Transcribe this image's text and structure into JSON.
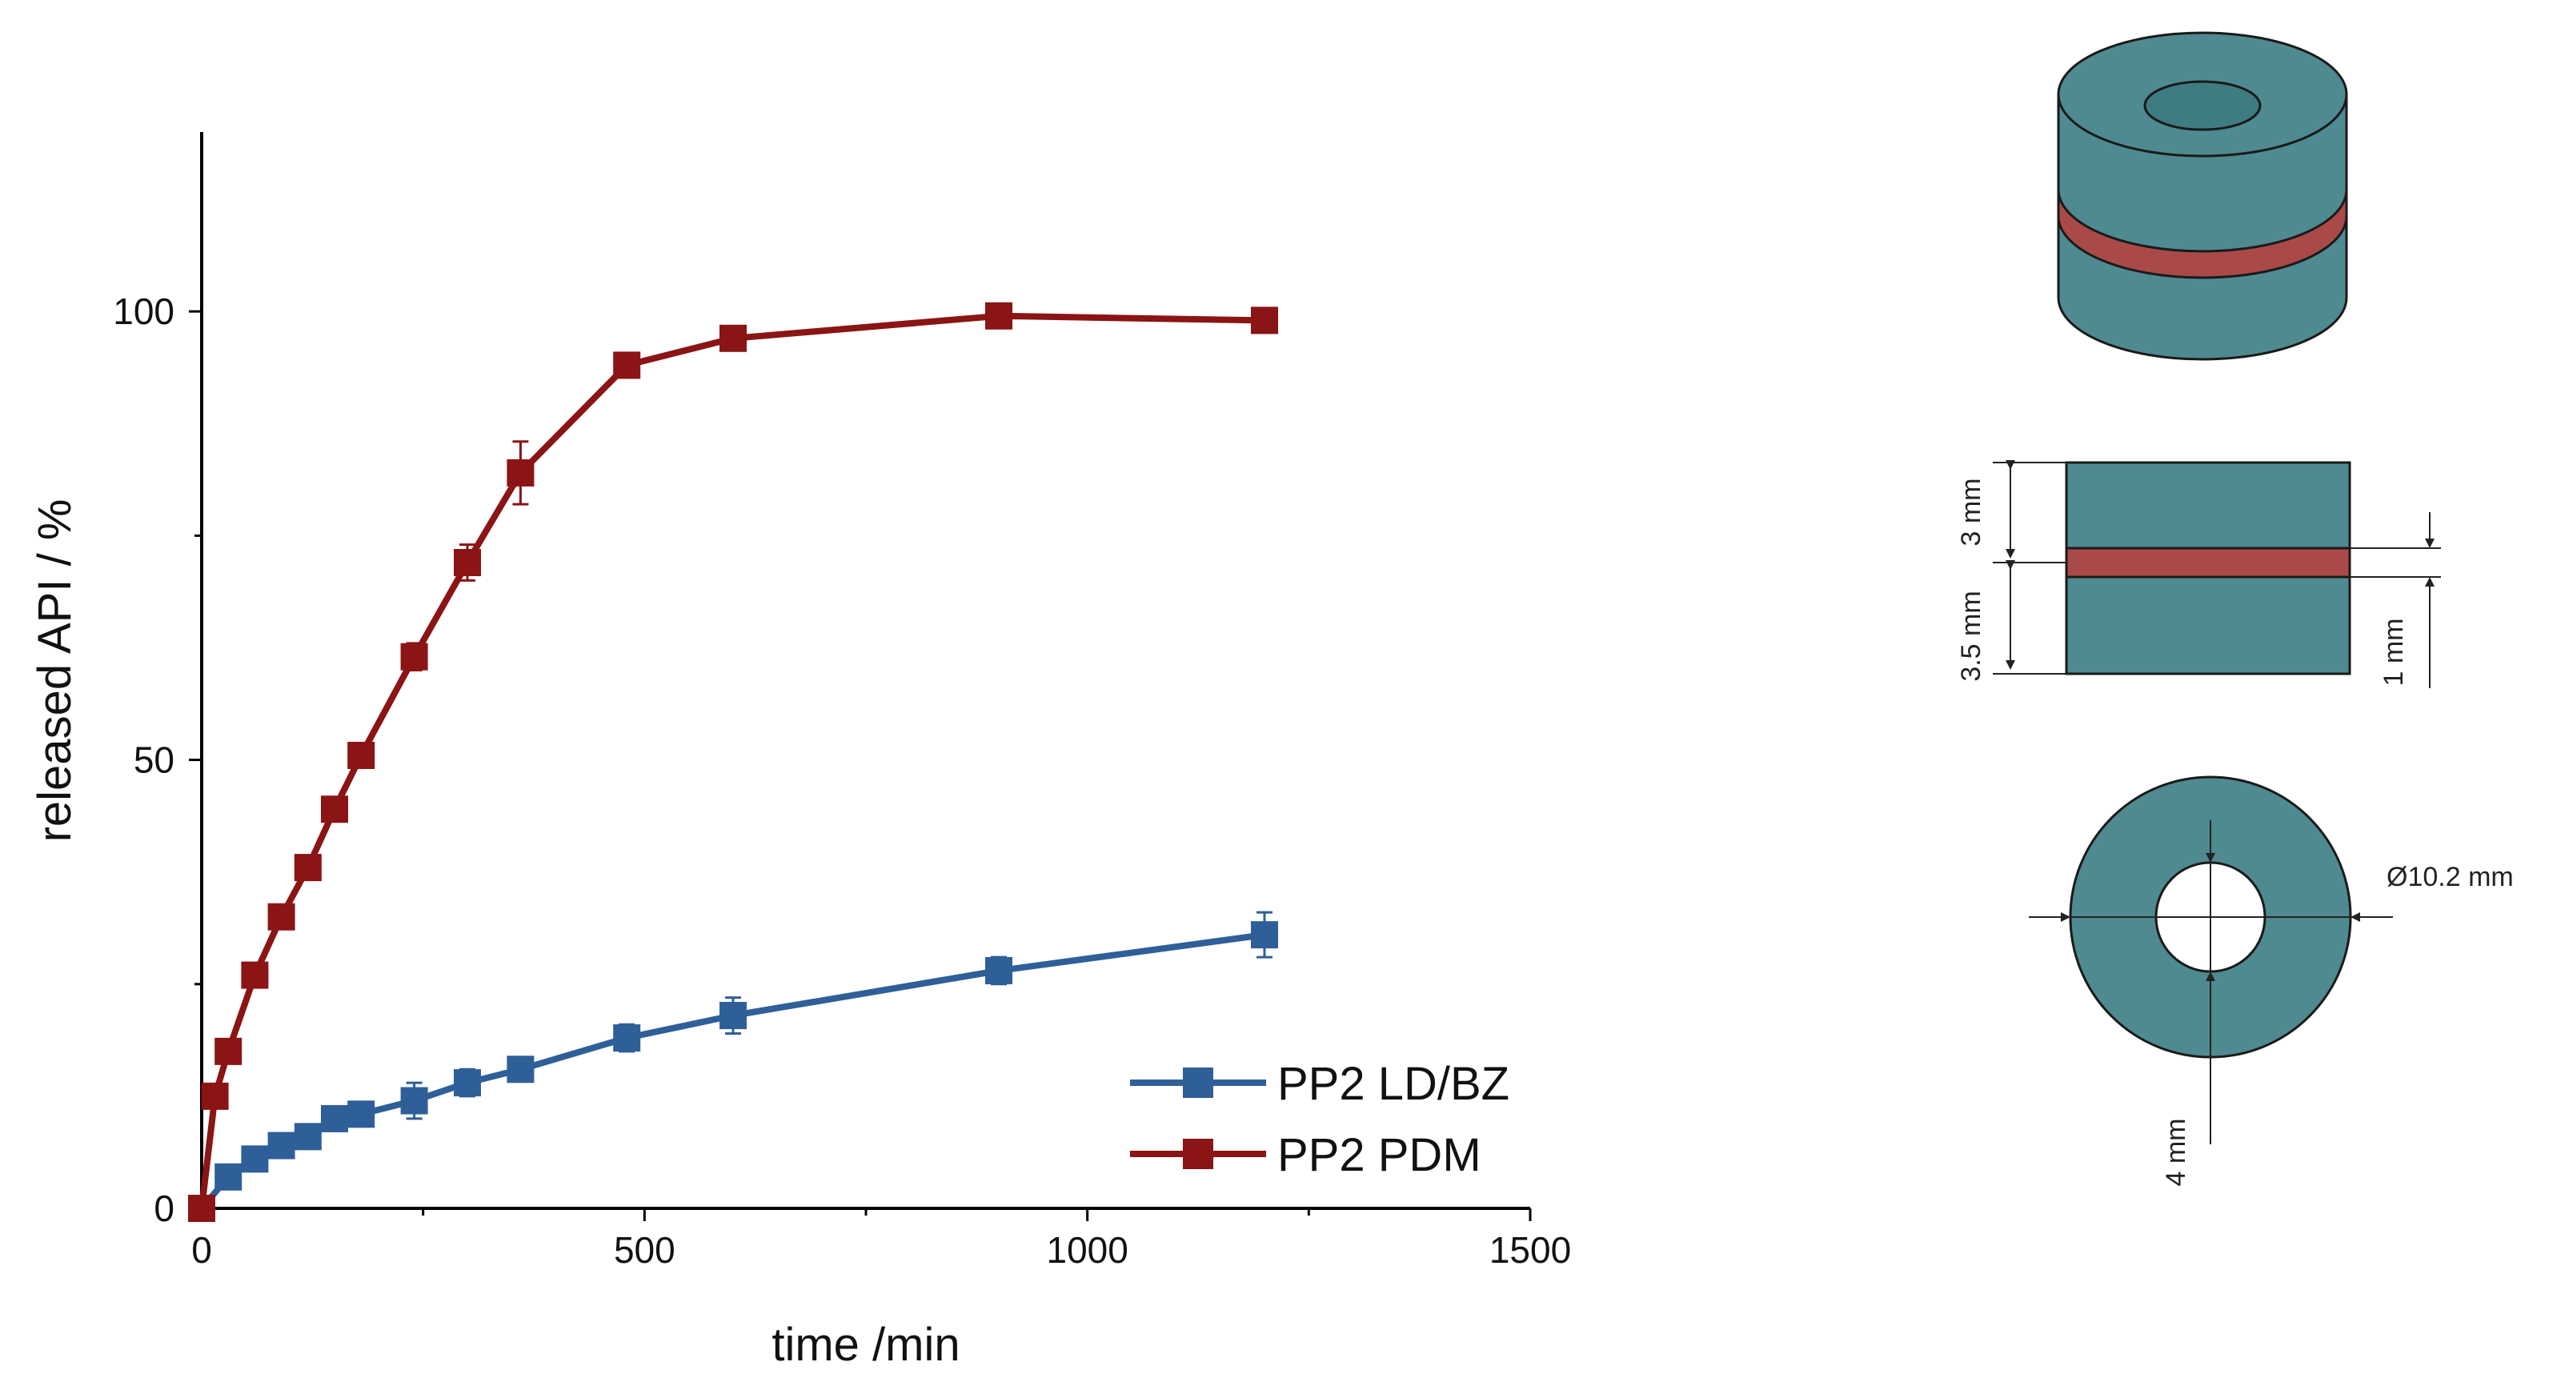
{
  "chart_data": {
    "type": "line",
    "title": "",
    "xlabel": "time /min",
    "ylabel": "released API / %",
    "xlim": [
      0,
      1500
    ],
    "ylim": [
      0,
      120
    ],
    "xticks": [
      0,
      500,
      1000,
      1500
    ],
    "yticks": [
      0,
      50,
      100
    ],
    "legend_position": "bottom-right",
    "series": [
      {
        "name": "PP2 LD/BZ",
        "color": "#2f5f98",
        "x": [
          0,
          30,
          60,
          90,
          120,
          150,
          180,
          240,
          300,
          360,
          480,
          600,
          900,
          1200
        ],
        "y": [
          0,
          3.5,
          5.5,
          7,
          8,
          10,
          10.5,
          12,
          14,
          15.5,
          19,
          21.5,
          26.5,
          30.5
        ],
        "err": [
          0,
          0.8,
          0.8,
          0.8,
          1.0,
          1.2,
          1.2,
          2.0,
          1.5,
          1.0,
          1.5,
          2.0,
          1.5,
          2.5
        ]
      },
      {
        "name": "PP2 PDM",
        "color": "#8b1414",
        "x": [
          0,
          15,
          30,
          60,
          90,
          120,
          150,
          180,
          240,
          300,
          360,
          480,
          600,
          900,
          1200
        ],
        "y": [
          0,
          12.5,
          17.5,
          26,
          32.5,
          38,
          44.5,
          50.5,
          61.5,
          72,
          82,
          94,
          97,
          99.5,
          99
        ],
        "err": [
          0,
          0.8,
          0.8,
          1.0,
          1.0,
          1.0,
          1.0,
          1.0,
          1.5,
          2.0,
          3.5,
          1.0,
          0.8,
          0.5,
          0.5
        ]
      }
    ]
  },
  "diagram": {
    "dim_3mm": "3 mm",
    "dim_3_5mm": "3.5 mm",
    "dim_1mm": "1 mm",
    "dim_diameter": "Ø10.2 mm",
    "dim_4mm": "4 mm",
    "body_color": "#4e8a90",
    "band_color": "#a94a48"
  }
}
